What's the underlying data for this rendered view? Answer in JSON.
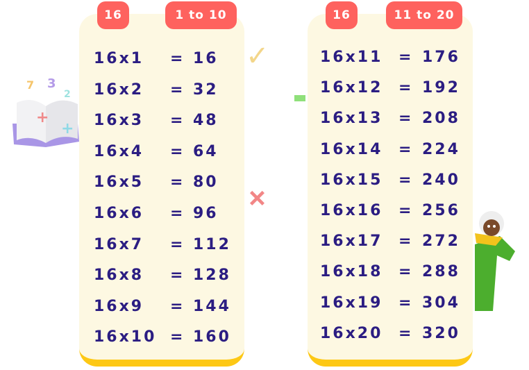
{
  "number": "16",
  "tables": [
    {
      "range_label": "1 to 10",
      "rows": [
        {
          "expr": "16x1",
          "eq": "=",
          "result": "16"
        },
        {
          "expr": "16x2",
          "eq": "=",
          "result": "32"
        },
        {
          "expr": "16x3",
          "eq": "=",
          "result": "48"
        },
        {
          "expr": "16x4",
          "eq": "=",
          "result": "64"
        },
        {
          "expr": "16x5",
          "eq": "=",
          "result": "80"
        },
        {
          "expr": "16x6",
          "eq": "=",
          "result": "96"
        },
        {
          "expr": "16x7",
          "eq": "=",
          "result": "112"
        },
        {
          "expr": "16x8",
          "eq": "=",
          "result": "128"
        },
        {
          "expr": "16x9",
          "eq": "=",
          "result": "144"
        },
        {
          "expr": "16x10",
          "eq": "=",
          "result": "160"
        }
      ]
    },
    {
      "range_label": "11 to 20",
      "rows": [
        {
          "expr": "16x11",
          "eq": "=",
          "result": "176"
        },
        {
          "expr": "16x12",
          "eq": "=",
          "result": "192"
        },
        {
          "expr": "16x13",
          "eq": "=",
          "result": "208"
        },
        {
          "expr": "16x14",
          "eq": "=",
          "result": "224"
        },
        {
          "expr": "16x15",
          "eq": "=",
          "result": "240"
        },
        {
          "expr": "16x16",
          "eq": "=",
          "result": "256"
        },
        {
          "expr": "16x17",
          "eq": "=",
          "result": "272"
        },
        {
          "expr": "16x18",
          "eq": "=",
          "result": "288"
        },
        {
          "expr": "16x19",
          "eq": "=",
          "result": "304"
        },
        {
          "expr": "16x20",
          "eq": "=",
          "result": "320"
        }
      ]
    }
  ],
  "colors": {
    "badge": "#fe625e",
    "card": "#fdf8e2",
    "card_border": "#fdc815",
    "text": "#2b1d82"
  },
  "decorations": [
    "math-book-icon",
    "check-mark-icon",
    "plus-sign-icon",
    "cartoon-teacher-character"
  ]
}
